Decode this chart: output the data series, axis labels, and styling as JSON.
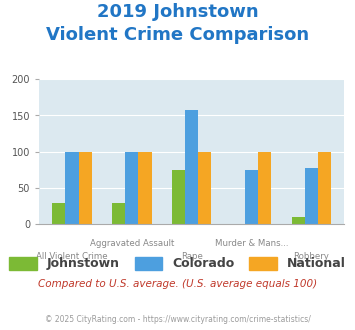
{
  "title_line1": "2019 Johnstown",
  "title_line2": "Violent Crime Comparison",
  "categories": [
    "All Violent Crime",
    "Aggravated Assault",
    "Rape",
    "Murder & Mans...",
    "Robbery"
  ],
  "category_labels_line1": [
    "",
    "Aggravated Assault",
    "",
    "Murder & Mans...",
    ""
  ],
  "category_labels_line2": [
    "All Violent Crime",
    "",
    "Rape",
    "",
    "Robbery"
  ],
  "series": {
    "Johnstown": [
      30,
      30,
      75,
      0,
      10
    ],
    "Colorado": [
      100,
      100,
      158,
      75,
      78
    ],
    "National": [
      100,
      100,
      100,
      100,
      100
    ]
  },
  "colors": {
    "Johnstown": "#7cba35",
    "Colorado": "#4d9fdf",
    "National": "#f5a623"
  },
  "ylim": [
    0,
    200
  ],
  "yticks": [
    0,
    50,
    100,
    150,
    200
  ],
  "background_color": "#dce9f0",
  "title_color": "#2176c5",
  "note_text": "Compared to U.S. average. (U.S. average equals 100)",
  "note_color": "#c0392b",
  "footer_text": "© 2025 CityRating.com - https://www.cityrating.com/crime-statistics/",
  "footer_color": "#9b9b9b",
  "legend_fontsize": 9,
  "title_fontsize": 13,
  "bar_width": 0.22
}
